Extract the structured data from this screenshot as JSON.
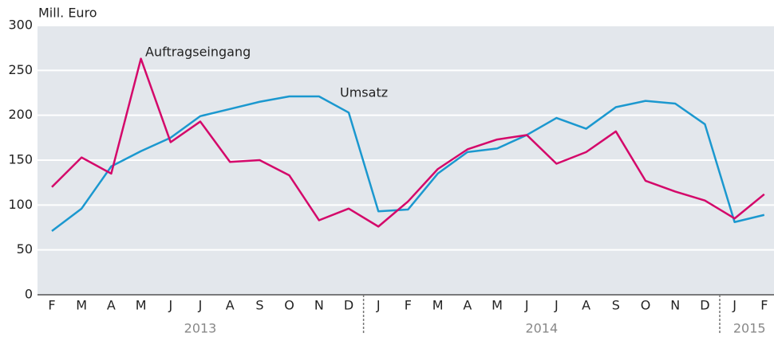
{
  "chart_data": {
    "type": "line",
    "y_axis_label": "Mill. Euro",
    "categories": [
      "F",
      "M",
      "A",
      "M",
      "J",
      "J",
      "A",
      "S",
      "O",
      "N",
      "D",
      "J",
      "F",
      "M",
      "A",
      "M",
      "J",
      "J",
      "A",
      "S",
      "O",
      "N",
      "D",
      "J",
      "F"
    ],
    "x_groups": [
      {
        "label": "2013",
        "count": 11
      },
      {
        "label": "2014",
        "count": 12
      },
      {
        "label": "2015",
        "count": 2
      }
    ],
    "series": [
      {
        "name": "Umsatz",
        "color": "#1b98cf",
        "values": [
          71,
          96,
          143,
          160,
          175,
          199,
          207,
          215,
          221,
          221,
          203,
          93,
          95,
          135,
          159,
          163,
          178,
          197,
          185,
          209,
          216,
          213,
          190,
          81,
          89
        ]
      },
      {
        "name": "Auftragseingang",
        "color": "#d4086a",
        "values": [
          120,
          153,
          135,
          263,
          170,
          193,
          148,
          150,
          133,
          83,
          96,
          76,
          104,
          140,
          162,
          173,
          178,
          146,
          159,
          182,
          127,
          115,
          105,
          85,
          112
        ]
      }
    ],
    "ylim": [
      0,
      300
    ],
    "yticks": [
      0,
      50,
      100,
      150,
      200,
      250,
      300
    ],
    "grid": true
  }
}
